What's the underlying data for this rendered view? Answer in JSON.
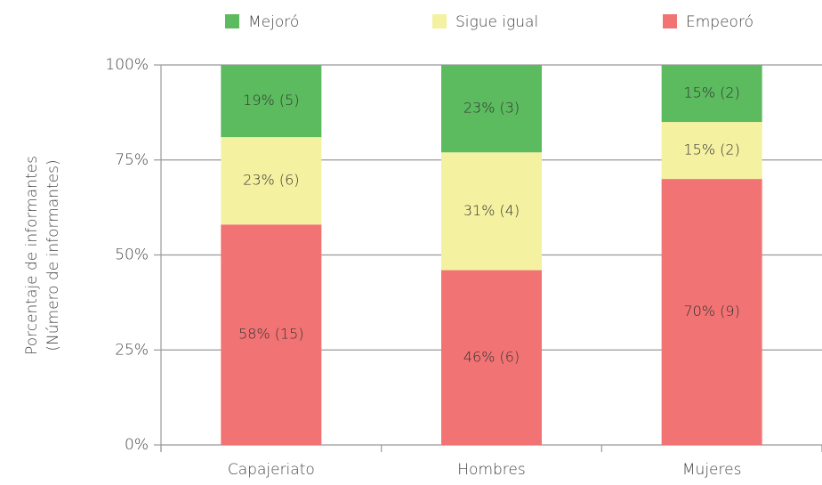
{
  "chart_data": {
    "type": "stacked_bar",
    "y_label": [
      "Porcentaje de informantes",
      "(Número de informantes)"
    ],
    "categories": [
      "Capajeriato",
      "Hombres",
      "Mujeres"
    ],
    "series": [
      {
        "name": "Mejoró",
        "color": "#5cba5f",
        "values": [
          19,
          23,
          15
        ],
        "value_labels": [
          "19% (5)",
          "23% (3)",
          "15% (2)"
        ]
      },
      {
        "name": "Sigue igual",
        "color": "#f4f1a1",
        "values": [
          23,
          31,
          15
        ],
        "value_labels": [
          "23% (6)",
          "31% (4)",
          "15% (2)"
        ]
      },
      {
        "name": "Empeoró",
        "color": "#f27373",
        "values": [
          58,
          46,
          70
        ],
        "value_labels": [
          "58% (15)",
          "46% (6)",
          "70% (9)"
        ]
      }
    ],
    "ylim": [
      0,
      100
    ],
    "yticks": [
      {
        "value": 0,
        "label": "0%"
      },
      {
        "value": 25,
        "label": "25%"
      },
      {
        "value": 50,
        "label": "50%"
      },
      {
        "value": 75,
        "label": "75%"
      },
      {
        "value": 100,
        "label": "100%"
      }
    ],
    "grid": true,
    "legend": "top"
  }
}
